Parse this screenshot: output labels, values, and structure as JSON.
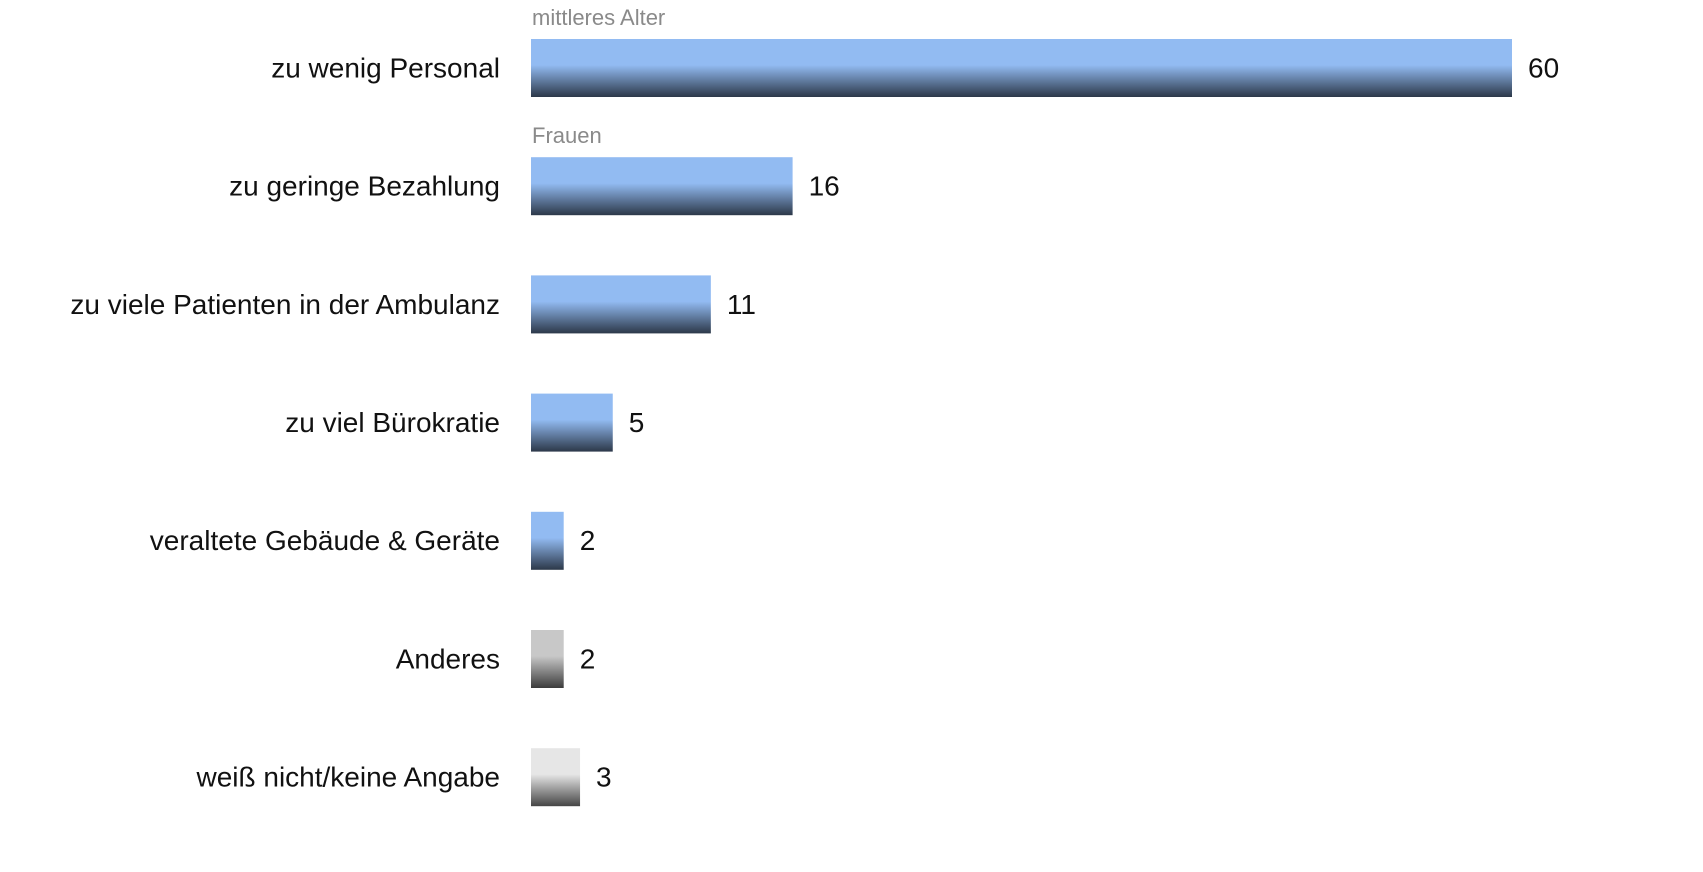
{
  "chart_data": {
    "type": "bar",
    "orientation": "horizontal",
    "categories": [
      "zu wenig Personal",
      "zu geringe Bezahlung",
      "zu viele Patienten in der Ambulanz",
      "zu viel Bürokratie",
      "veraltete Gebäude & Geräte",
      "Anderes",
      "weiß nicht/keine Angabe"
    ],
    "values": [
      60,
      16,
      11,
      5,
      2,
      2,
      3
    ],
    "colors": [
      "#92bbf2",
      "#92bbf2",
      "#92bbf2",
      "#92bbf2",
      "#92bbf2",
      "#c8c8c8",
      "#e6e6e6"
    ],
    "annotations": [
      {
        "text": "mittleres Alter",
        "category": "zu wenig Personal"
      },
      {
        "text": "Frauen",
        "category": "zu geringe Bezahlung"
      }
    ]
  }
}
